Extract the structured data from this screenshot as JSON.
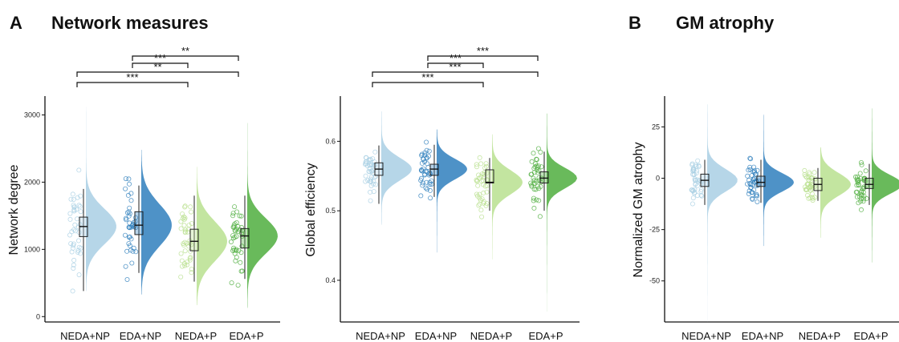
{
  "panels": [
    {
      "letter": "A",
      "title": "Network measures"
    },
    {
      "letter": "B",
      "title": "GM atrophy"
    }
  ],
  "colors": {
    "NEDA+NP": "#a9cfe4",
    "EDA+NP": "#2f7fbd",
    "NEDA+P": "#b9e08f",
    "EDA+P": "#4fae3e"
  },
  "chart_data": [
    {
      "type": "raincloud",
      "title": "",
      "ylabel": "Network degree",
      "categories": [
        "NEDA+NP",
        "EDA+NP",
        "NEDA+P",
        "EDA+P"
      ],
      "ylim": [
        -80,
        3280
      ],
      "yticks": [
        0,
        1000,
        2000,
        3000
      ],
      "boxes": [
        {
          "category": "NEDA+NP",
          "whisker_low": 380,
          "q1": 1190,
          "median": 1340,
          "q3": 1480,
          "whisker_high": 1900,
          "dist_min": 380,
          "dist_max": 3120
        },
        {
          "category": "EDA+NP",
          "whisker_low": 650,
          "q1": 1220,
          "median": 1360,
          "q3": 1560,
          "whisker_high": 1950,
          "dist_min": 330,
          "dist_max": 2480
        },
        {
          "category": "NEDA+P",
          "whisker_low": 520,
          "q1": 980,
          "median": 1120,
          "q3": 1300,
          "whisker_high": 1800,
          "dist_min": 170,
          "dist_max": 2230
        },
        {
          "category": "EDA+P",
          "whisker_low": 560,
          "q1": 1020,
          "median": 1200,
          "q3": 1310,
          "whisker_high": 1800,
          "dist_min": 130,
          "dist_max": 2880
        }
      ],
      "significance": [
        {
          "from": "EDA+NP",
          "to": "EDA+P",
          "label": "**"
        },
        {
          "from": "EDA+NP",
          "to": "NEDA+P",
          "label": "***"
        },
        {
          "from": "NEDA+NP",
          "to": "EDA+P",
          "label": "**"
        },
        {
          "from": "NEDA+NP",
          "to": "NEDA+P",
          "label": "***"
        }
      ]
    },
    {
      "type": "raincloud",
      "title": "",
      "ylabel": "Global efficiency",
      "categories": [
        "NEDA+NP",
        "EDA+NP",
        "NEDA+P",
        "EDA+P"
      ],
      "ylim": [
        0.34,
        0.665
      ],
      "yticks": [
        0.4,
        0.5,
        0.6
      ],
      "boxes": [
        {
          "category": "NEDA+NP",
          "whisker_low": 0.51,
          "q1": 0.551,
          "median": 0.56,
          "q3": 0.569,
          "whisker_high": 0.594,
          "dist_min": 0.48,
          "dist_max": 0.643
        },
        {
          "category": "EDA+NP",
          "whisker_low": 0.52,
          "q1": 0.551,
          "median": 0.56,
          "q3": 0.567,
          "whisker_high": 0.595,
          "dist_min": 0.44,
          "dist_max": 0.617
        },
        {
          "category": "NEDA+P",
          "whisker_low": 0.5,
          "q1": 0.54,
          "median": 0.541,
          "q3": 0.559,
          "whisker_high": 0.576,
          "dist_min": 0.43,
          "dist_max": 0.61
        },
        {
          "category": "EDA+P",
          "whisker_low": 0.5,
          "q1": 0.54,
          "median": 0.547,
          "q3": 0.556,
          "whisker_high": 0.585,
          "dist_min": 0.355,
          "dist_max": 0.64
        }
      ],
      "significance": [
        {
          "from": "EDA+NP",
          "to": "EDA+P",
          "label": "***"
        },
        {
          "from": "EDA+NP",
          "to": "NEDA+P",
          "label": "***"
        },
        {
          "from": "NEDA+NP",
          "to": "EDA+P",
          "label": "***"
        },
        {
          "from": "NEDA+NP",
          "to": "NEDA+P",
          "label": "***"
        }
      ]
    },
    {
      "type": "raincloud",
      "title": "",
      "ylabel": "Normalized GM atrophy",
      "categories": [
        "NEDA+NP",
        "EDA+NP",
        "NEDA+P",
        "EDA+P"
      ],
      "ylim": [
        -70,
        40
      ],
      "yticks": [
        -50,
        -25,
        0,
        25
      ],
      "boxes": [
        {
          "category": "NEDA+NP",
          "whisker_low": -13,
          "q1": -4,
          "median": -1,
          "q3": 2,
          "whisker_high": 9,
          "dist_min": -70,
          "dist_max": 36
        },
        {
          "category": "EDA+NP",
          "whisker_low": -12,
          "q1": -4,
          "median": -2,
          "q3": 1,
          "whisker_high": 9,
          "dist_min": -33,
          "dist_max": 31
        },
        {
          "category": "NEDA+P",
          "whisker_low": -11,
          "q1": -6,
          "median": -3,
          "q3": 0,
          "whisker_high": 5,
          "dist_min": -29,
          "dist_max": 15
        },
        {
          "category": "EDA+P",
          "whisker_low": -13,
          "q1": -5,
          "median": -3,
          "q3": 0,
          "whisker_high": 7,
          "dist_min": -41,
          "dist_max": 34
        }
      ],
      "significance": []
    }
  ]
}
